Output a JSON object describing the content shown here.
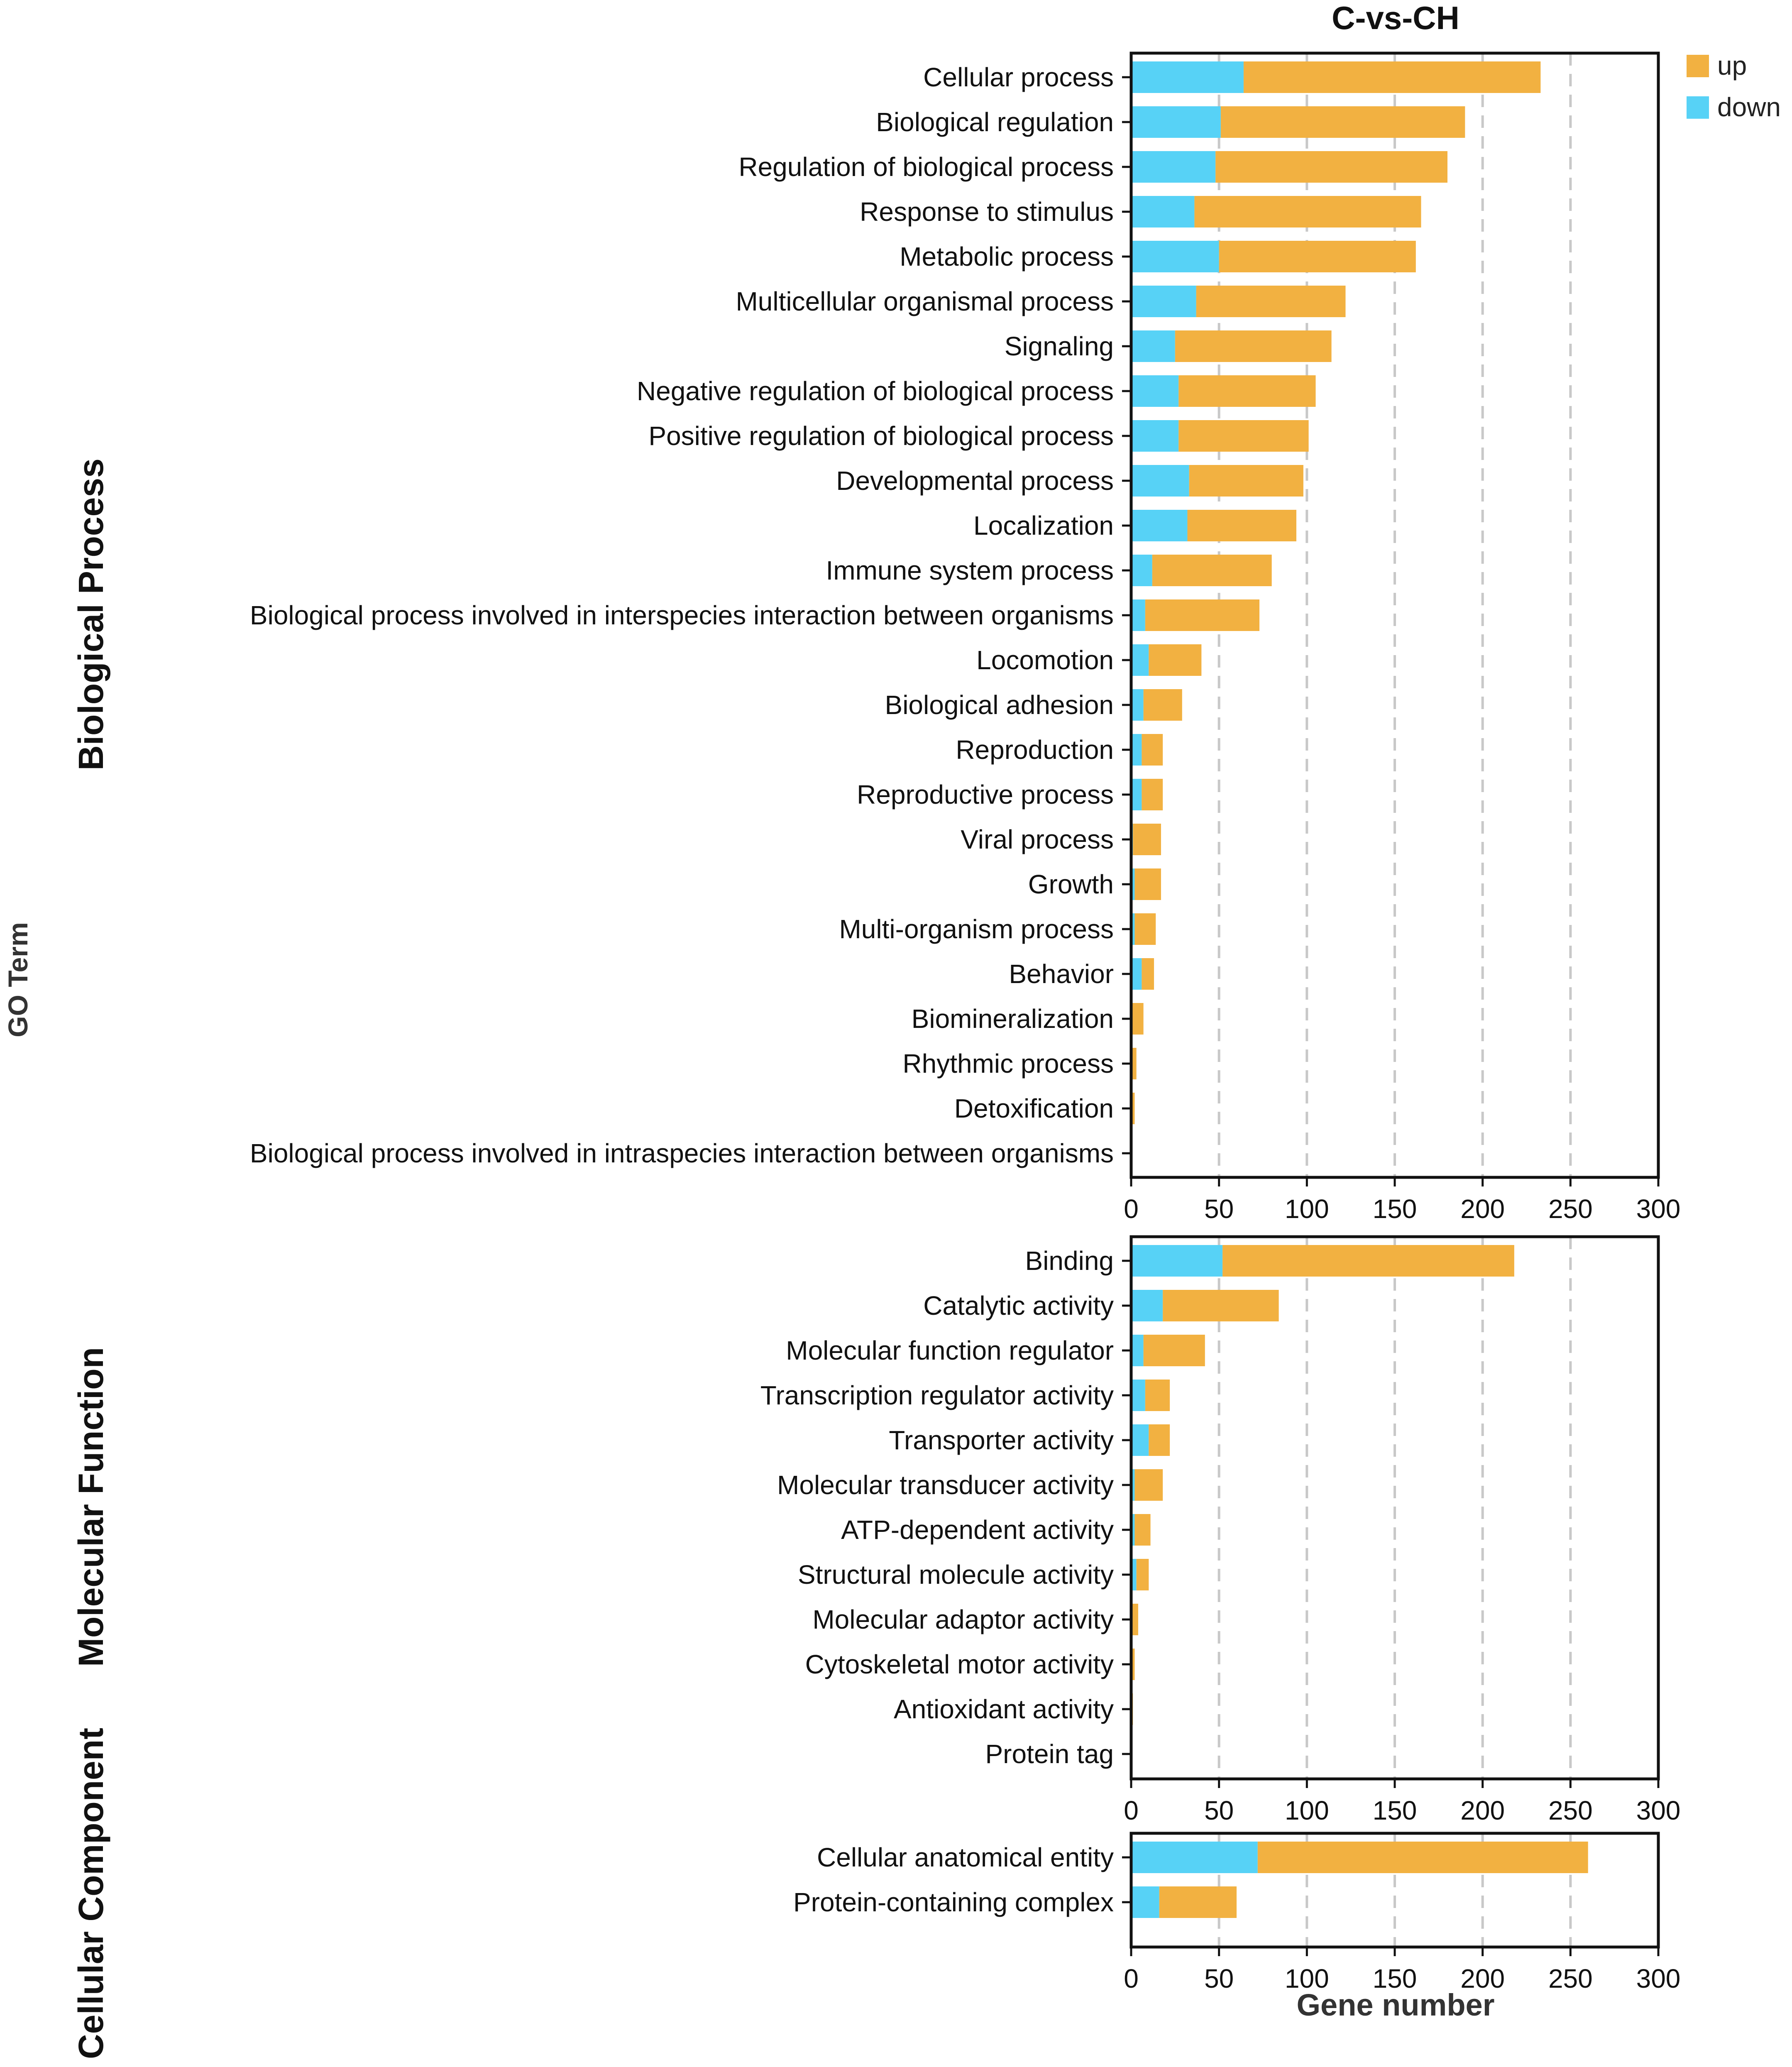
{
  "colors": {
    "up": "#F2B141",
    "down": "#57D2F6",
    "grid": "#c8c8c8",
    "axis": "#111111"
  },
  "chart_data": {
    "type": "bar",
    "orientation": "horizontal",
    "stacked": true,
    "title": "C-vs-CH",
    "xlabel": "Gene number",
    "ylabel": "GO Term",
    "xlim": [
      0,
      300
    ],
    "xticks": [
      "0",
      "50",
      "100",
      "150",
      "200",
      "250",
      "300"
    ],
    "grid": "vertical dashed",
    "legend": {
      "position": "top-right",
      "entries": [
        "up",
        "down"
      ]
    },
    "panels": [
      {
        "name": "Biological Process",
        "categories": [
          "Cellular process",
          "Biological regulation",
          "Regulation of biological process",
          "Response to stimulus",
          "Metabolic process",
          "Multicellular organismal process",
          "Signaling",
          "Negative regulation of biological process",
          "Positive regulation of biological process",
          "Developmental process",
          "Localization",
          "Immune system process",
          "Biological process involved in interspecies interaction between organisms",
          "Locomotion",
          "Biological adhesion",
          "Reproduction",
          "Reproductive process",
          "Viral process",
          "Growth",
          "Multi-organism process",
          "Behavior",
          "Biomineralization",
          "Rhythmic process",
          "Detoxification",
          "Biological process involved in intraspecies interaction between organisms"
        ],
        "series": [
          {
            "name": "down",
            "values": [
              64,
              51,
              48,
              36,
              50,
              37,
              25,
              27,
              27,
              33,
              32,
              12,
              8,
              10,
              7,
              6,
              6,
              1,
              2,
              2,
              6,
              0,
              0,
              0,
              0
            ]
          },
          {
            "name": "up",
            "values": [
              169,
              139,
              132,
              129,
              112,
              85,
              89,
              78,
              74,
              65,
              62,
              68,
              65,
              30,
              22,
              12,
              12,
              16,
              15,
              12,
              7,
              7,
              3,
              2,
              0
            ]
          }
        ]
      },
      {
        "name": "Molecular Function",
        "categories": [
          "Binding",
          "Catalytic activity",
          "Molecular function regulator",
          "Transcription regulator activity",
          "Transporter activity",
          "Molecular transducer activity",
          "ATP-dependent activity",
          "Structural molecule activity",
          "Molecular adaptor activity",
          "Cytoskeletal motor activity",
          "Antioxidant activity",
          "Protein tag"
        ],
        "series": [
          {
            "name": "down",
            "values": [
              52,
              18,
              7,
              8,
              10,
              2,
              2,
              3,
              0,
              0,
              0,
              0
            ]
          },
          {
            "name": "up",
            "values": [
              166,
              66,
              35,
              14,
              12,
              16,
              9,
              7,
              4,
              2,
              1,
              0
            ]
          }
        ]
      },
      {
        "name": "Cellular Component",
        "categories": [
          "Cellular anatomical entity",
          "Protein-containing complex"
        ],
        "series": [
          {
            "name": "down",
            "values": [
              72,
              16
            ]
          },
          {
            "name": "up",
            "values": [
              188,
              44
            ]
          }
        ]
      }
    ]
  }
}
